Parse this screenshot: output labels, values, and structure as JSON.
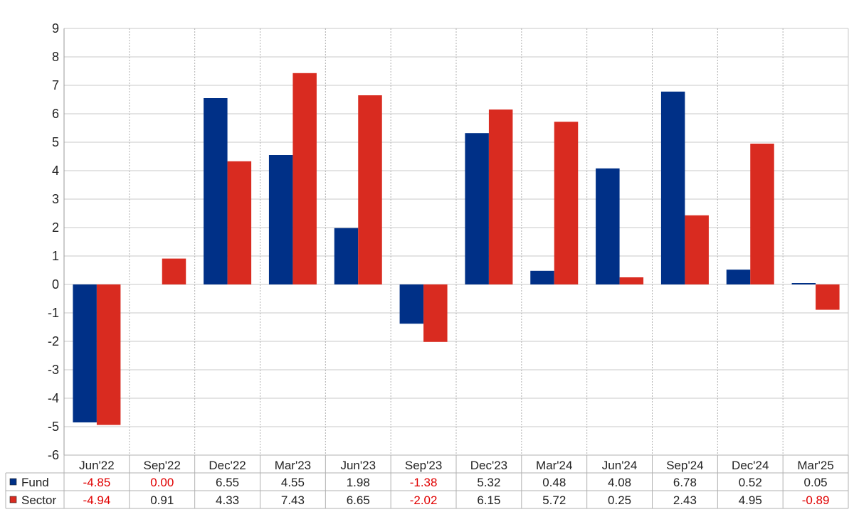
{
  "chart_data": {
    "type": "bar",
    "categories": [
      "Jun'22",
      "Sep'22",
      "Dec'22",
      "Mar'23",
      "Jun'23",
      "Sep'23",
      "Dec'23",
      "Mar'24",
      "Jun'24",
      "Sep'24",
      "Dec'24",
      "Mar'25"
    ],
    "series": [
      {
        "name": "Fund",
        "color": "#003087",
        "values": [
          -4.85,
          0.0,
          6.55,
          4.55,
          1.98,
          -1.38,
          5.32,
          0.48,
          4.08,
          6.78,
          0.52,
          0.05
        ],
        "labels": [
          "-4.85",
          "0.00",
          "6.55",
          "4.55",
          "1.98",
          "-1.38",
          "5.32",
          "0.48",
          "4.08",
          "6.78",
          "0.52",
          "0.05"
        ],
        "label_colors": [
          "#e00000",
          "#e00000",
          "#222222",
          "#222222",
          "#222222",
          "#e00000",
          "#222222",
          "#222222",
          "#222222",
          "#222222",
          "#222222",
          "#222222"
        ]
      },
      {
        "name": "Sector",
        "color": "#d92b20",
        "values": [
          -4.94,
          0.91,
          4.33,
          7.43,
          6.65,
          -2.02,
          6.15,
          5.72,
          0.25,
          2.43,
          4.95,
          -0.89
        ],
        "labels": [
          "-4.94",
          "0.91",
          "4.33",
          "7.43",
          "6.65",
          "-2.02",
          "6.15",
          "5.72",
          "0.25",
          "2.43",
          "4.95",
          "-0.89"
        ],
        "label_colors": [
          "#e00000",
          "#222222",
          "#222222",
          "#222222",
          "#222222",
          "#e00000",
          "#222222",
          "#222222",
          "#222222",
          "#222222",
          "#222222",
          "#e00000"
        ]
      }
    ],
    "ylim": [
      -6,
      9
    ],
    "yticks": [
      "9",
      "8",
      "7",
      "6",
      "5",
      "4",
      "3",
      "2",
      "1",
      "0",
      "-1",
      "-2",
      "-3",
      "-4",
      "-5",
      "-6"
    ],
    "grid": true,
    "legend": "data-table-below"
  }
}
